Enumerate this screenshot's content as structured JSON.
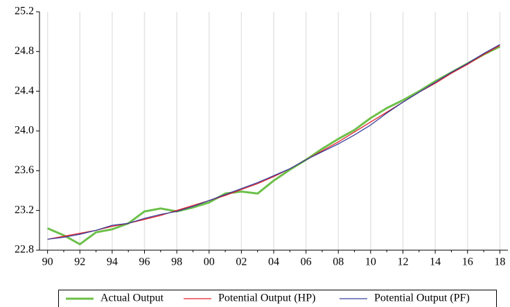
{
  "chart_data": {
    "type": "line",
    "categories": [
      "90",
      null,
      "92",
      null,
      "94",
      null,
      "96",
      null,
      "98",
      null,
      "00",
      null,
      "02",
      null,
      "04",
      null,
      "06",
      null,
      "08",
      null,
      "10",
      null,
      "12",
      null,
      "14",
      null,
      "16",
      null,
      "18"
    ],
    "series": [
      {
        "name": "Actual Output",
        "color": "#6cc04a",
        "width": 3,
        "values": [
          23.02,
          22.95,
          22.86,
          22.98,
          23.01,
          23.07,
          23.19,
          23.22,
          23.19,
          23.23,
          23.28,
          23.37,
          23.39,
          23.37,
          23.5,
          23.61,
          23.71,
          23.82,
          23.92,
          24.01,
          24.13,
          24.23,
          24.31,
          24.4,
          24.5,
          24.59,
          24.68,
          24.77,
          24.85
        ]
      },
      {
        "name": "Potential Output (HP)",
        "color": "#e0202a",
        "width": 1.3,
        "values": [
          22.91,
          22.94,
          22.97,
          23.0,
          23.04,
          23.07,
          23.11,
          23.15,
          23.2,
          23.25,
          23.3,
          23.35,
          23.41,
          23.47,
          23.54,
          23.62,
          23.71,
          23.8,
          23.89,
          23.99,
          24.09,
          24.19,
          24.29,
          24.39,
          24.48,
          24.58,
          24.67,
          24.77,
          24.86
        ]
      },
      {
        "name": "Potential Output (PF)",
        "color": "#3a3f9a",
        "width": 1.3,
        "values": [
          22.91,
          22.93,
          22.96,
          23.0,
          23.05,
          23.07,
          23.12,
          23.16,
          23.19,
          23.24,
          23.3,
          23.36,
          23.42,
          23.48,
          23.55,
          23.62,
          23.71,
          23.79,
          23.87,
          23.96,
          24.06,
          24.18,
          24.29,
          24.39,
          24.49,
          24.59,
          24.68,
          24.78,
          24.87
        ]
      }
    ],
    "ylim": [
      22.8,
      25.2
    ],
    "yticks": [
      22.8,
      23.2,
      23.6,
      {
        "value": 24.0,
        "label": "24.0"
      },
      24.4,
      24.8,
      25.2
    ],
    "grid": true,
    "legend": "bottom"
  }
}
